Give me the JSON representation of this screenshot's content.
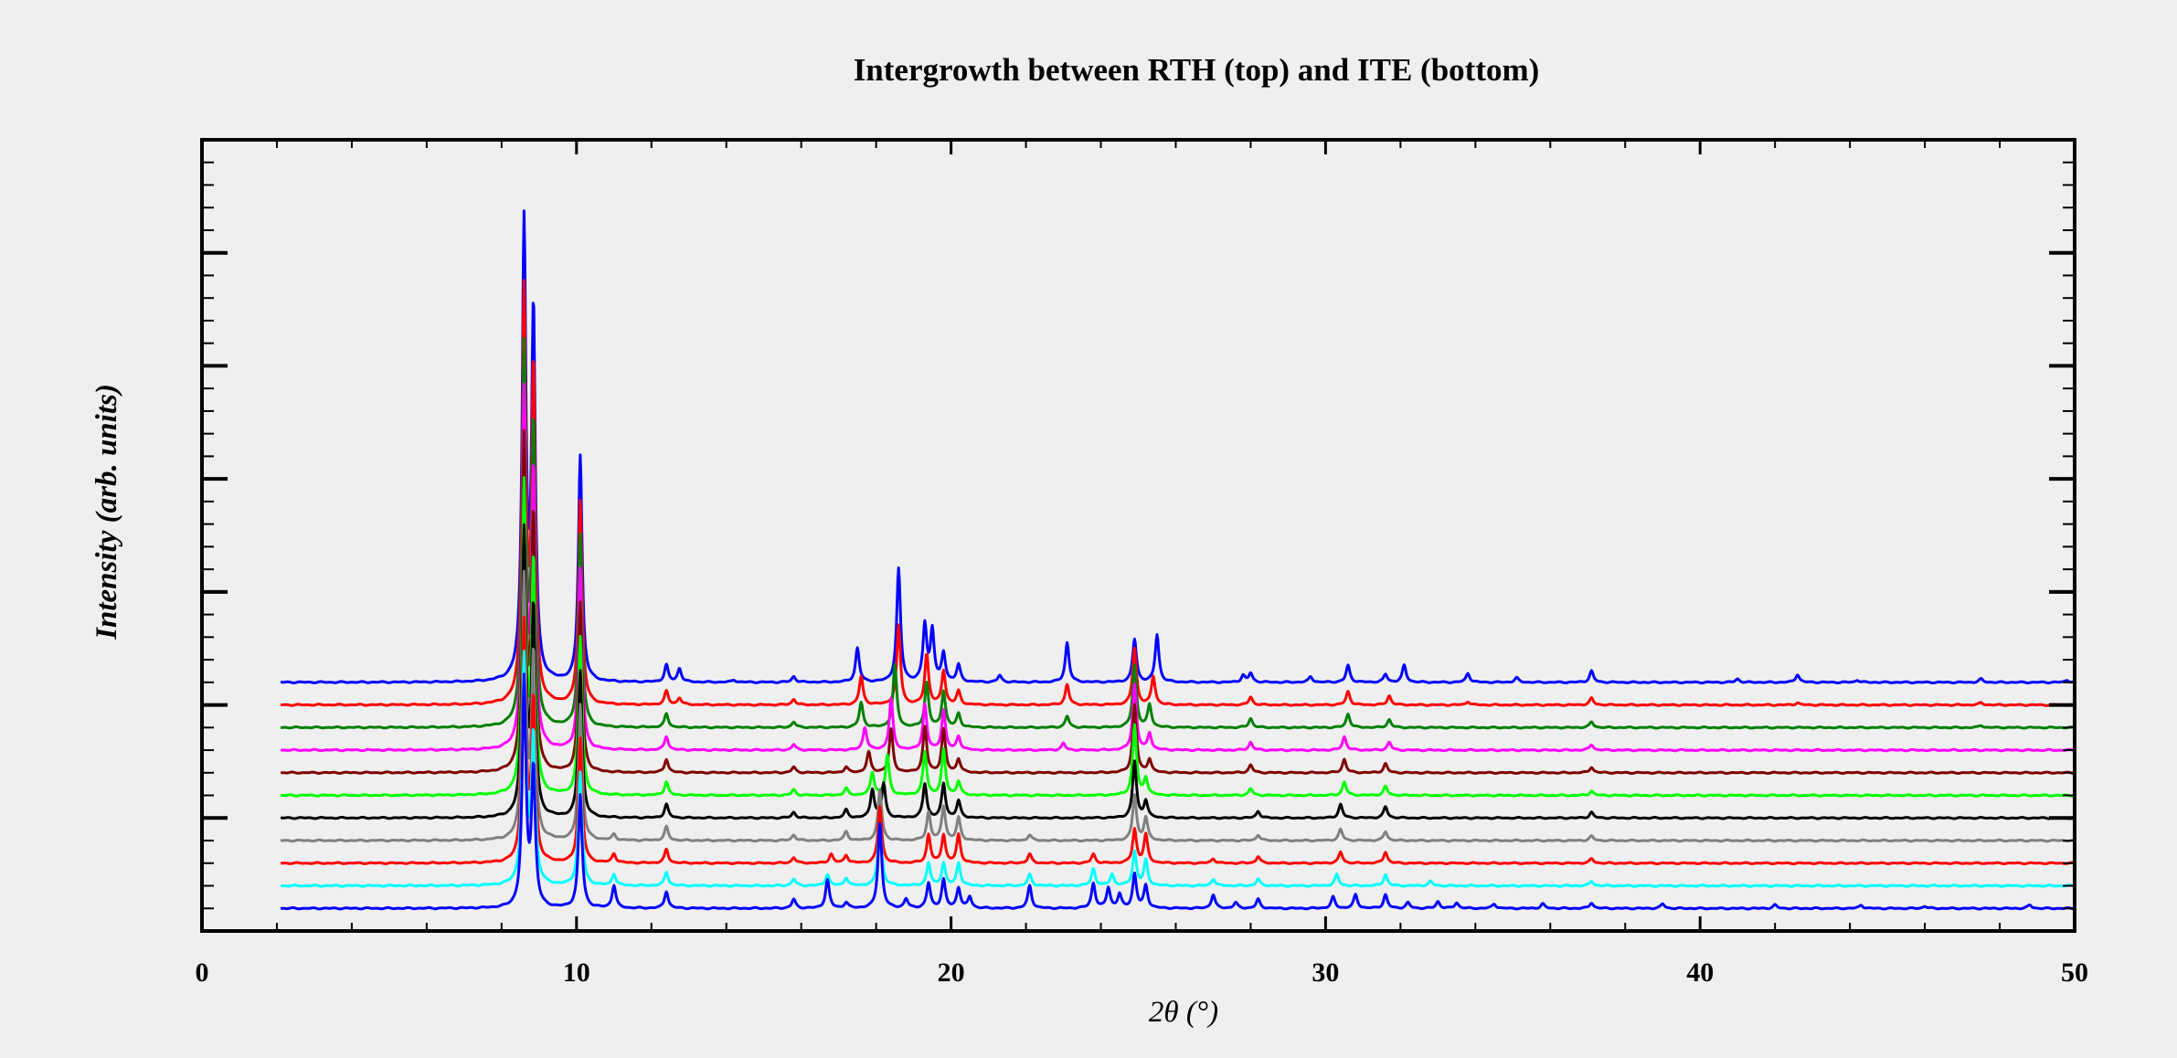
{
  "chart_data": {
    "type": "line",
    "title": "Intergrowth between RTH (top) and ITE (bottom)",
    "xlabel": "2θ (°)",
    "ylabel": "Intensity (arb. units)",
    "xlim": [
      0,
      50
    ],
    "ylim": [
      0,
      7
    ],
    "x_ticks": [
      "0",
      "10",
      "20",
      "30",
      "40",
      "50"
    ],
    "y_tick_labels_shown": false,
    "grid": false,
    "legend": "none",
    "x_start": 2.1,
    "offset_step": 0.2,
    "series": [
      {
        "color": "#0000ff",
        "offset": 2.2,
        "peaks": [
          [
            8.6,
            4
          ],
          [
            8.85,
            3.2
          ],
          [
            10.1,
            2
          ],
          [
            12.4,
            0.15
          ],
          [
            12.75,
            0.12
          ],
          [
            14.2,
            0.02
          ],
          [
            15.8,
            0.05
          ],
          [
            17.5,
            0.3
          ],
          [
            18.6,
            1
          ],
          [
            19.3,
            0.5
          ],
          [
            19.5,
            0.45
          ],
          [
            19.8,
            0.25
          ],
          [
            20.2,
            0.15
          ],
          [
            21.3,
            0.06
          ],
          [
            23.1,
            0.35
          ],
          [
            24.9,
            0.38
          ],
          [
            25.5,
            0.42
          ],
          [
            27.8,
            0.06
          ],
          [
            28.0,
            0.08
          ],
          [
            29.6,
            0.05
          ],
          [
            30.6,
            0.15
          ],
          [
            31.6,
            0.07
          ],
          [
            32.1,
            0.15
          ],
          [
            33.8,
            0.08
          ],
          [
            35.1,
            0.04
          ],
          [
            37.1,
            0.1
          ],
          [
            41.0,
            0.03
          ],
          [
            42.6,
            0.07
          ],
          [
            44.2,
            0.02
          ],
          [
            47.5,
            0.03
          ],
          [
            49.8,
            0.02
          ]
        ]
      },
      {
        "color": "#ff0000",
        "offset": 2.0,
        "peaks": [
          [
            8.6,
            3.6
          ],
          [
            8.85,
            2.9
          ],
          [
            10.1,
            1.8
          ],
          [
            12.4,
            0.12
          ],
          [
            12.75,
            0.06
          ],
          [
            15.8,
            0.05
          ],
          [
            17.6,
            0.25
          ],
          [
            18.6,
            0.7
          ],
          [
            19.35,
            0.45
          ],
          [
            19.8,
            0.3
          ],
          [
            20.2,
            0.12
          ],
          [
            23.1,
            0.18
          ],
          [
            24.9,
            0.5
          ],
          [
            25.4,
            0.25
          ],
          [
            28.0,
            0.07
          ],
          [
            30.6,
            0.12
          ],
          [
            31.7,
            0.08
          ],
          [
            33.8,
            0.03
          ],
          [
            37.1,
            0.06
          ],
          [
            42.6,
            0.02
          ],
          [
            47.5,
            0.02
          ]
        ]
      },
      {
        "color": "#008000",
        "offset": 1.8,
        "peaks": [
          [
            8.6,
            3.3
          ],
          [
            8.85,
            2.6
          ],
          [
            10.1,
            1.7
          ],
          [
            12.4,
            0.12
          ],
          [
            15.8,
            0.05
          ],
          [
            17.6,
            0.22
          ],
          [
            18.5,
            0.55
          ],
          [
            19.35,
            0.4
          ],
          [
            19.8,
            0.32
          ],
          [
            20.2,
            0.12
          ],
          [
            23.1,
            0.1
          ],
          [
            24.9,
            0.55
          ],
          [
            25.3,
            0.2
          ],
          [
            28.0,
            0.08
          ],
          [
            30.6,
            0.12
          ],
          [
            31.7,
            0.07
          ],
          [
            37.1,
            0.05
          ],
          [
            47.5,
            0.02
          ]
        ]
      },
      {
        "color": "#ff00ff",
        "offset": 1.6,
        "peaks": [
          [
            8.6,
            3.1
          ],
          [
            8.85,
            2.4
          ],
          [
            10.1,
            1.6
          ],
          [
            12.4,
            0.12
          ],
          [
            15.8,
            0.05
          ],
          [
            17.7,
            0.2
          ],
          [
            18.4,
            0.45
          ],
          [
            19.3,
            0.4
          ],
          [
            19.8,
            0.35
          ],
          [
            20.2,
            0.12
          ],
          [
            23.0,
            0.06
          ],
          [
            24.9,
            0.58
          ],
          [
            25.3,
            0.15
          ],
          [
            28.0,
            0.07
          ],
          [
            30.5,
            0.12
          ],
          [
            31.7,
            0.07
          ],
          [
            37.1,
            0.05
          ]
        ]
      },
      {
        "color": "#800000",
        "offset": 1.4,
        "peaks": [
          [
            8.6,
            2.9
          ],
          [
            8.85,
            2.2
          ],
          [
            10.1,
            1.5
          ],
          [
            12.4,
            0.12
          ],
          [
            15.8,
            0.05
          ],
          [
            17.2,
            0.05
          ],
          [
            17.8,
            0.18
          ],
          [
            18.4,
            0.38
          ],
          [
            19.3,
            0.4
          ],
          [
            19.8,
            0.38
          ],
          [
            20.2,
            0.12
          ],
          [
            24.9,
            0.6
          ],
          [
            25.3,
            0.12
          ],
          [
            28.0,
            0.07
          ],
          [
            30.5,
            0.12
          ],
          [
            31.6,
            0.08
          ],
          [
            37.1,
            0.05
          ]
        ]
      },
      {
        "color": "#00ff00",
        "offset": 1.2,
        "peaks": [
          [
            8.6,
            2.7
          ],
          [
            8.85,
            2.0
          ],
          [
            10.1,
            1.4
          ],
          [
            12.4,
            0.12
          ],
          [
            15.8,
            0.05
          ],
          [
            17.2,
            0.06
          ],
          [
            17.9,
            0.2
          ],
          [
            18.3,
            0.35
          ],
          [
            19.3,
            0.38
          ],
          [
            19.8,
            0.4
          ],
          [
            20.2,
            0.12
          ],
          [
            24.9,
            0.62
          ],
          [
            25.2,
            0.15
          ],
          [
            28.0,
            0.06
          ],
          [
            30.5,
            0.12
          ],
          [
            31.6,
            0.08
          ],
          [
            37.1,
            0.04
          ]
        ]
      },
      {
        "color": "#000000",
        "offset": 1.0,
        "peaks": [
          [
            8.6,
            2.5
          ],
          [
            8.85,
            1.8
          ],
          [
            10.1,
            1.3
          ],
          [
            12.4,
            0.12
          ],
          [
            15.8,
            0.05
          ],
          [
            17.2,
            0.07
          ],
          [
            17.9,
            0.25
          ],
          [
            18.2,
            0.3
          ],
          [
            19.3,
            0.3
          ],
          [
            19.8,
            0.3
          ],
          [
            20.2,
            0.15
          ],
          [
            24.9,
            0.5
          ],
          [
            25.2,
            0.15
          ],
          [
            28.2,
            0.06
          ],
          [
            30.4,
            0.12
          ],
          [
            31.6,
            0.1
          ],
          [
            37.1,
            0.05
          ]
        ]
      },
      {
        "color": "#808080",
        "offset": 0.8,
        "peaks": [
          [
            8.6,
            2.3
          ],
          [
            8.85,
            1.6
          ],
          [
            10.1,
            1.2
          ],
          [
            11.0,
            0.05
          ],
          [
            12.4,
            0.12
          ],
          [
            15.8,
            0.05
          ],
          [
            17.2,
            0.08
          ],
          [
            18.1,
            0.45
          ],
          [
            19.4,
            0.25
          ],
          [
            19.8,
            0.3
          ],
          [
            20.2,
            0.2
          ],
          [
            22.1,
            0.05
          ],
          [
            24.9,
            0.4
          ],
          [
            25.2,
            0.2
          ],
          [
            28.2,
            0.05
          ],
          [
            30.4,
            0.1
          ],
          [
            31.6,
            0.08
          ],
          [
            37.1,
            0.04
          ]
        ]
      },
      {
        "color": "#ff0000",
        "offset": 0.6,
        "peaks": [
          [
            8.6,
            2.1
          ],
          [
            8.85,
            1.4
          ],
          [
            10.1,
            1.1
          ],
          [
            11.0,
            0.08
          ],
          [
            12.4,
            0.12
          ],
          [
            15.8,
            0.05
          ],
          [
            16.8,
            0.08
          ],
          [
            17.2,
            0.07
          ],
          [
            18.1,
            0.5
          ],
          [
            19.4,
            0.25
          ],
          [
            19.8,
            0.25
          ],
          [
            20.2,
            0.25
          ],
          [
            22.1,
            0.08
          ],
          [
            23.8,
            0.08
          ],
          [
            24.9,
            0.3
          ],
          [
            25.2,
            0.25
          ],
          [
            27.0,
            0.04
          ],
          [
            28.2,
            0.06
          ],
          [
            30.4,
            0.1
          ],
          [
            31.6,
            0.1
          ],
          [
            37.1,
            0.04
          ]
        ]
      },
      {
        "color": "#00ffff",
        "offset": 0.4,
        "peaks": [
          [
            8.6,
            2.0
          ],
          [
            8.85,
            1.3
          ],
          [
            10.1,
            1.0
          ],
          [
            11.0,
            0.1
          ],
          [
            12.4,
            0.12
          ],
          [
            15.8,
            0.06
          ],
          [
            16.7,
            0.1
          ],
          [
            17.2,
            0.07
          ],
          [
            18.1,
            0.55
          ],
          [
            19.4,
            0.2
          ],
          [
            19.8,
            0.2
          ],
          [
            20.2,
            0.2
          ],
          [
            22.1,
            0.1
          ],
          [
            23.8,
            0.15
          ],
          [
            24.3,
            0.1
          ],
          [
            24.9,
            0.3
          ],
          [
            25.2,
            0.22
          ],
          [
            27.0,
            0.06
          ],
          [
            28.2,
            0.06
          ],
          [
            30.3,
            0.1
          ],
          [
            31.6,
            0.1
          ],
          [
            32.8,
            0.04
          ],
          [
            37.1,
            0.04
          ]
        ]
      },
      {
        "color": "#0000ff",
        "offset": 0.2,
        "peaks": [
          [
            8.6,
            2.0
          ],
          [
            8.85,
            1.2
          ],
          [
            10.1,
            1.0
          ],
          [
            11.0,
            0.2
          ],
          [
            12.4,
            0.15
          ],
          [
            15.8,
            0.08
          ],
          [
            16.7,
            0.25
          ],
          [
            17.2,
            0.05
          ],
          [
            18.1,
            0.75
          ],
          [
            18.8,
            0.08
          ],
          [
            19.4,
            0.22
          ],
          [
            19.8,
            0.25
          ],
          [
            20.2,
            0.18
          ],
          [
            20.5,
            0.1
          ],
          [
            22.1,
            0.2
          ],
          [
            23.8,
            0.22
          ],
          [
            24.2,
            0.18
          ],
          [
            24.5,
            0.12
          ],
          [
            24.9,
            0.3
          ],
          [
            25.2,
            0.2
          ],
          [
            27.0,
            0.12
          ],
          [
            27.6,
            0.05
          ],
          [
            28.2,
            0.08
          ],
          [
            30.2,
            0.1
          ],
          [
            30.8,
            0.12
          ],
          [
            31.6,
            0.12
          ],
          [
            32.2,
            0.05
          ],
          [
            33.0,
            0.06
          ],
          [
            33.5,
            0.05
          ],
          [
            34.5,
            0.04
          ],
          [
            35.8,
            0.04
          ],
          [
            37.1,
            0.05
          ],
          [
            39.0,
            0.04
          ],
          [
            42.0,
            0.03
          ],
          [
            44.3,
            0.03
          ],
          [
            46.0,
            0.02
          ],
          [
            48.8,
            0.03
          ]
        ]
      }
    ]
  }
}
